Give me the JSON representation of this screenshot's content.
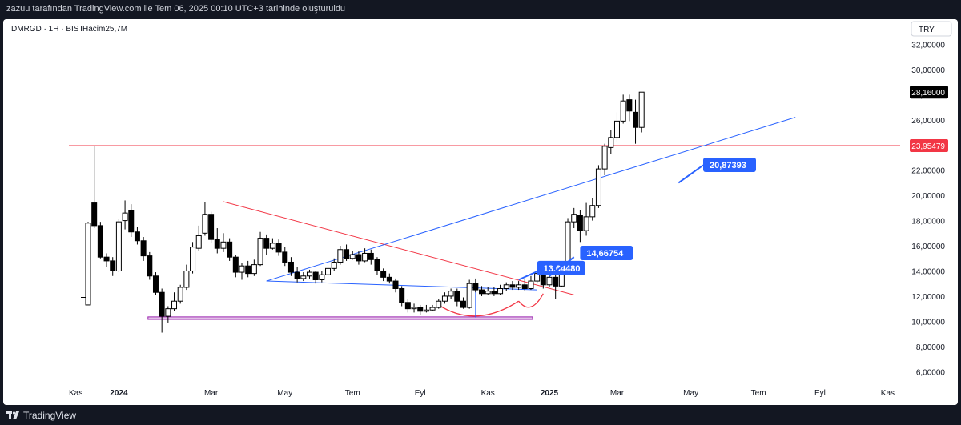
{
  "snapshot_caption": "zazuu tarafından TradingView.com ile Tem 06, 2025 00:10 UTC+3 tarihinde oluşturuldu",
  "brand": "TradingView",
  "colors": {
    "up_body": "#ffffff",
    "down_body": "#000000",
    "candle_border": "#000000",
    "blue_line": "#2962ff",
    "red_line": "#f23645",
    "purple_zone": "#9c27b0",
    "price_tag": "#000000",
    "level_tag": "#f23645"
  },
  "chart_data": {
    "type": "candlestick",
    "symbol_label": "DMRGD · 1H · BIST",
    "volume_label": "Hacim25,7M",
    "currency": "TRY",
    "ylim": [
      5,
      34
    ],
    "price_ticks": [
      "32,00000",
      "30,00000",
      "28,00000",
      "26,00000",
      "24,00000",
      "22,00000",
      "20,00000",
      "18,00000",
      "16,00000",
      "14,00000",
      "12,00000",
      "10,00000",
      "8,00000",
      "6,00000"
    ],
    "price_tick_values": [
      32,
      30,
      28,
      26,
      24,
      22,
      20,
      18,
      16,
      14,
      12,
      10,
      8,
      6
    ],
    "x_labels": [
      "Kas",
      "2024",
      "Mar",
      "May",
      "Tem",
      "Eyl",
      "Kas",
      "2025",
      "Mar",
      "May",
      "Tem",
      "Eyl",
      "Kas"
    ],
    "x_label_index": [
      -2,
      5,
      20,
      32,
      43,
      54,
      65,
      75,
      86,
      98,
      109,
      119,
      130
    ],
    "last_price": "28,16000",
    "level_value": 23.95479,
    "level_label": "23,95479",
    "candles": [
      [
        11.3,
        17.8,
        17.9,
        11.3
      ],
      [
        19.4,
        17.6,
        23.9,
        17.4
      ],
      [
        17.6,
        15.1,
        17.9,
        15.0
      ],
      [
        15.1,
        14.8,
        15.4,
        14.3
      ],
      [
        14.8,
        14.0,
        15.1,
        13.6
      ],
      [
        14.0,
        17.9,
        18.1,
        13.9
      ],
      [
        18.0,
        18.6,
        19.6,
        17.3
      ],
      [
        18.8,
        17.1,
        19.3,
        16.7
      ],
      [
        17.1,
        16.4,
        17.5,
        16.1
      ],
      [
        16.4,
        15.2,
        16.7,
        14.8
      ],
      [
        15.2,
        13.6,
        15.5,
        13.3
      ],
      [
        13.6,
        12.3,
        13.9,
        12.1
      ],
      [
        12.3,
        10.4,
        12.6,
        9.1
      ],
      [
        10.4,
        11.0,
        11.2,
        9.9
      ],
      [
        11.0,
        11.6,
        12.3,
        10.8
      ],
      [
        11.6,
        12.7,
        12.9,
        11.4
      ],
      [
        12.7,
        14.0,
        14.5,
        12.5
      ],
      [
        14.0,
        15.9,
        16.3,
        13.8
      ],
      [
        15.8,
        16.8,
        17.6,
        15.6
      ],
      [
        17.0,
        18.5,
        19.5,
        16.8
      ],
      [
        18.5,
        16.5,
        18.7,
        16.2
      ],
      [
        16.5,
        15.8,
        17.4,
        15.4
      ],
      [
        15.8,
        16.3,
        17.0,
        15.5
      ],
      [
        16.3,
        15.1,
        16.6,
        14.8
      ],
      [
        15.1,
        13.9,
        15.3,
        13.5
      ],
      [
        13.9,
        14.4,
        14.6,
        13.3
      ],
      [
        14.4,
        13.8,
        14.8,
        13.5
      ],
      [
        13.8,
        14.5,
        14.9,
        13.6
      ],
      [
        14.5,
        16.6,
        17.1,
        14.4
      ],
      [
        16.6,
        15.8,
        16.9,
        15.3
      ],
      [
        15.8,
        16.2,
        16.6,
        15.7
      ],
      [
        16.2,
        15.5,
        16.5,
        15.2
      ],
      [
        15.5,
        14.7,
        15.9,
        14.4
      ],
      [
        14.7,
        13.9,
        15.1,
        13.6
      ],
      [
        13.9,
        13.4,
        14.3,
        13.1
      ],
      [
        13.4,
        13.6,
        13.9,
        13.2
      ],
      [
        13.6,
        13.9,
        14.1,
        13.4
      ],
      [
        13.9,
        13.3,
        14.0,
        13.0
      ],
      [
        13.3,
        13.7,
        14.0,
        13.1
      ],
      [
        13.7,
        14.2,
        14.4,
        13.5
      ],
      [
        14.2,
        14.7,
        15.0,
        14.0
      ],
      [
        14.7,
        15.7,
        16.0,
        14.5
      ],
      [
        15.7,
        15.0,
        16.1,
        14.8
      ],
      [
        15.0,
        15.3,
        15.6,
        14.9
      ],
      [
        15.3,
        14.8,
        15.6,
        14.5
      ],
      [
        14.8,
        15.4,
        15.8,
        14.7
      ],
      [
        15.4,
        14.9,
        15.7,
        14.5
      ],
      [
        14.9,
        14.0,
        15.1,
        13.7
      ],
      [
        14.0,
        13.5,
        14.2,
        13.2
      ],
      [
        13.5,
        13.2,
        13.8,
        13.0
      ],
      [
        13.2,
        12.6,
        13.4,
        12.3
      ],
      [
        12.6,
        11.5,
        12.8,
        11.2
      ],
      [
        11.5,
        11.0,
        11.8,
        10.7
      ],
      [
        11.0,
        11.1,
        11.4,
        10.7
      ],
      [
        11.1,
        10.8,
        11.3,
        10.5
      ],
      [
        10.8,
        10.9,
        11.3,
        10.7
      ],
      [
        10.9,
        11.1,
        11.3,
        10.8
      ],
      [
        11.1,
        11.6,
        11.8,
        11.0
      ],
      [
        11.6,
        12.0,
        12.3,
        11.4
      ],
      [
        12.0,
        12.4,
        12.6,
        11.8
      ],
      [
        12.4,
        11.6,
        12.6,
        11.2
      ],
      [
        11.6,
        11.1,
        11.9,
        11.0
      ],
      [
        11.1,
        13.0,
        13.3,
        11.0
      ],
      [
        13.0,
        12.5,
        13.4,
        12.3
      ],
      [
        12.5,
        12.2,
        12.8,
        12.0
      ],
      [
        12.2,
        12.4,
        12.7,
        12.1
      ],
      [
        12.4,
        12.2,
        12.7,
        12.0
      ],
      [
        12.2,
        12.6,
        12.9,
        12.1
      ],
      [
        12.6,
        12.9,
        13.1,
        12.4
      ],
      [
        12.9,
        12.7,
        13.2,
        12.5
      ],
      [
        12.7,
        12.9,
        13.2,
        12.5
      ],
      [
        12.9,
        12.6,
        13.4,
        12.4
      ],
      [
        12.6,
        13.2,
        13.6,
        12.5
      ],
      [
        13.2,
        13.8,
        14.2,
        13.0
      ],
      [
        13.8,
        12.9,
        14.1,
        12.6
      ],
      [
        12.9,
        13.5,
        13.7,
        12.7
      ],
      [
        13.5,
        12.8,
        13.9,
        11.8
      ],
      [
        12.8,
        13.9,
        14.3,
        12.7
      ],
      [
        13.9,
        17.9,
        18.2,
        13.8
      ],
      [
        17.9,
        18.5,
        19.0,
        17.4
      ],
      [
        18.4,
        17.2,
        18.8,
        16.3
      ],
      [
        17.2,
        18.3,
        19.4,
        16.8
      ],
      [
        18.3,
        19.2,
        19.8,
        18.0
      ],
      [
        19.2,
        22.1,
        22.4,
        19.0
      ],
      [
        22.1,
        23.9,
        24.1,
        21.6
      ],
      [
        23.8,
        24.6,
        25.2,
        23.3
      ],
      [
        24.6,
        25.9,
        26.6,
        24.2
      ],
      [
        25.9,
        27.5,
        28.0,
        25.7
      ],
      [
        27.6,
        26.7,
        28.0,
        25.9
      ],
      [
        26.6,
        25.4,
        27.6,
        24.1
      ],
      [
        25.4,
        28.2,
        28.2,
        25.0
      ]
    ],
    "annotations": [
      {
        "label": "13,64480",
        "value": 13.6448
      },
      {
        "label": "14,66754",
        "value": 14.66754
      },
      {
        "label": "20,87393",
        "value": 20.87393
      }
    ]
  }
}
